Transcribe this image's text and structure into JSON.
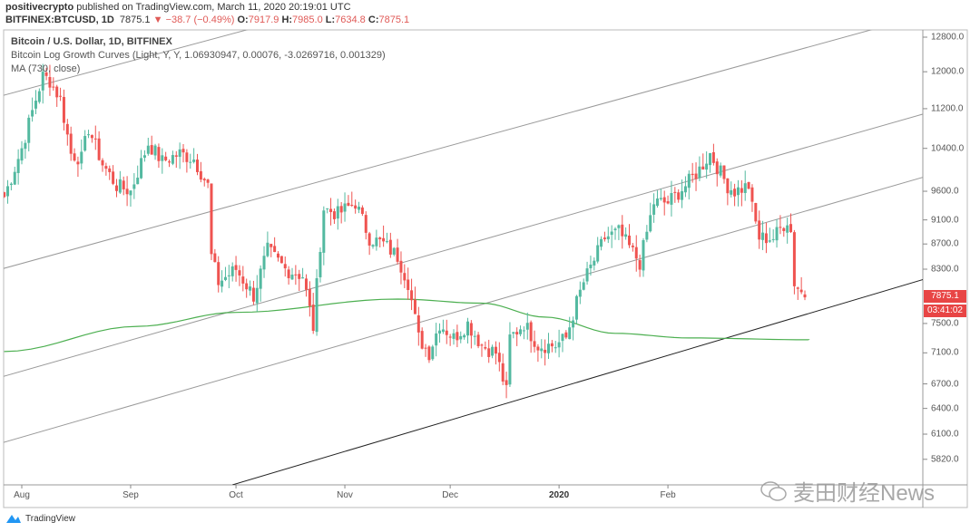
{
  "header": {
    "author": "positivecrypto",
    "published": "published on TradingView.com, March 11, 2020 20:19:01 UTC",
    "symbol": "BITFINEX:BTCUSD, 1D",
    "last": "7875.1",
    "change": "−38.7 (−0.49%)",
    "o_label": "O:",
    "o": "7917.9",
    "h_label": "H:",
    "h": "7985.0",
    "l_label": "L:",
    "l": "7634.8",
    "c_label": "C:",
    "c": "7875.1"
  },
  "legend": {
    "title": "Bitcoin / U.S. Dollar, 1D, BITFINEX",
    "indicator": "Bitcoin Log Growth Curves (Light, Y, Y, 1.06930947, 0.00076, -3.0269716, 0.001329)",
    "ma": "MA (730, close)"
  },
  "colors": {
    "up": "#53b9a0",
    "down": "#ef5350",
    "ma": "#4caf50",
    "curve": "#9a9a9a",
    "support": "#222222",
    "badge": "#e84545"
  },
  "chart_data": {
    "type": "candlestick",
    "scale": "log",
    "ylim": [
      5820,
      12800
    ],
    "y_ticks": [
      "12800.0",
      "12000.0",
      "11200.0",
      "10400.0",
      "9600.0",
      "9100.0",
      "8700.0",
      "8300.0",
      "7500.0",
      "7100.0",
      "6700.0",
      "6400.0",
      "6100.0",
      "5820.0"
    ],
    "x_ticks": [
      {
        "label": "Aug",
        "day": 0
      },
      {
        "label": "Sep",
        "day": 31
      },
      {
        "label": "Oct",
        "day": 61
      },
      {
        "label": "Nov",
        "day": 92
      },
      {
        "label": "Dec",
        "day": 122
      },
      {
        "label": "2020",
        "day": 153,
        "bold": true
      },
      {
        "label": "Feb",
        "day": 184
      }
    ],
    "x_unit": "days since 2019-08-01",
    "last_price_label": "7875.1",
    "countdown_label": "03:41:02",
    "close_anchors": [
      [
        -5,
        9500
      ],
      [
        0,
        10400
      ],
      [
        4,
        11400
      ],
      [
        6,
        11900
      ],
      [
        8,
        11800
      ],
      [
        11,
        11400
      ],
      [
        14,
        10300
      ],
      [
        17,
        10200
      ],
      [
        19,
        10800
      ],
      [
        23,
        10100
      ],
      [
        27,
        9700
      ],
      [
        31,
        9600
      ],
      [
        36,
        10500
      ],
      [
        40,
        10150
      ],
      [
        45,
        10300
      ],
      [
        49,
        10200
      ],
      [
        53,
        9700
      ],
      [
        54,
        8500
      ],
      [
        56,
        8100
      ],
      [
        61,
        8300
      ],
      [
        66,
        7900
      ],
      [
        70,
        8600
      ],
      [
        75,
        8300
      ],
      [
        80,
        8200
      ],
      [
        83,
        7450
      ],
      [
        85,
        8700
      ],
      [
        86,
        9300
      ],
      [
        90,
        9200
      ],
      [
        95,
        9400
      ],
      [
        99,
        8800
      ],
      [
        103,
        8700
      ],
      [
        107,
        8500
      ],
      [
        110,
        8100
      ],
      [
        113,
        7300
      ],
      [
        116,
        7100
      ],
      [
        119,
        7500
      ],
      [
        123,
        7300
      ],
      [
        127,
        7500
      ],
      [
        131,
        7200
      ],
      [
        135,
        7100
      ],
      [
        138,
        6600
      ],
      [
        139,
        7300
      ],
      [
        143,
        7500
      ],
      [
        147,
        7200
      ],
      [
        152,
        7200
      ],
      [
        155,
        7300
      ],
      [
        158,
        7800
      ],
      [
        160,
        8100
      ],
      [
        166,
        8800
      ],
      [
        170,
        8900
      ],
      [
        176,
        8400
      ],
      [
        180,
        9400
      ],
      [
        184,
        9400
      ],
      [
        189,
        9700
      ],
      [
        193,
        10000
      ],
      [
        196,
        10300
      ],
      [
        201,
        9700
      ],
      [
        203,
        9600
      ],
      [
        207,
        9700
      ],
      [
        208,
        9300
      ],
      [
        210,
        8800
      ],
      [
        214,
        8800
      ],
      [
        218,
        9100
      ],
      [
        219,
        8900
      ],
      [
        220,
        8100
      ],
      [
        223,
        7875
      ]
    ],
    "ma_730": [
      [
        -5,
        7117
      ],
      [
        33,
        7460
      ],
      [
        61,
        7657
      ],
      [
        107,
        7850
      ],
      [
        131,
        7790
      ],
      [
        149,
        7590
      ],
      [
        169,
        7363
      ],
      [
        190,
        7300
      ],
      [
        224,
        7275
      ]
    ],
    "growth_curves": [
      [
        [
          -5,
          6009
        ],
        [
          224,
          9265
        ]
      ],
      [
        [
          -5,
          6797
        ],
        [
          224,
          10431
        ]
      ],
      [
        [
          -5,
          8314
        ],
        [
          224,
          12565
        ]
      ],
      [
        [
          -5,
          11487
        ],
        [
          64,
          12974
        ]
      ]
    ],
    "support_line": [
      [
        60,
        5549
      ],
      [
        257,
        8147
      ]
    ]
  },
  "footer": {
    "brand": "TradingView",
    "watermark": "麦田财经News"
  }
}
